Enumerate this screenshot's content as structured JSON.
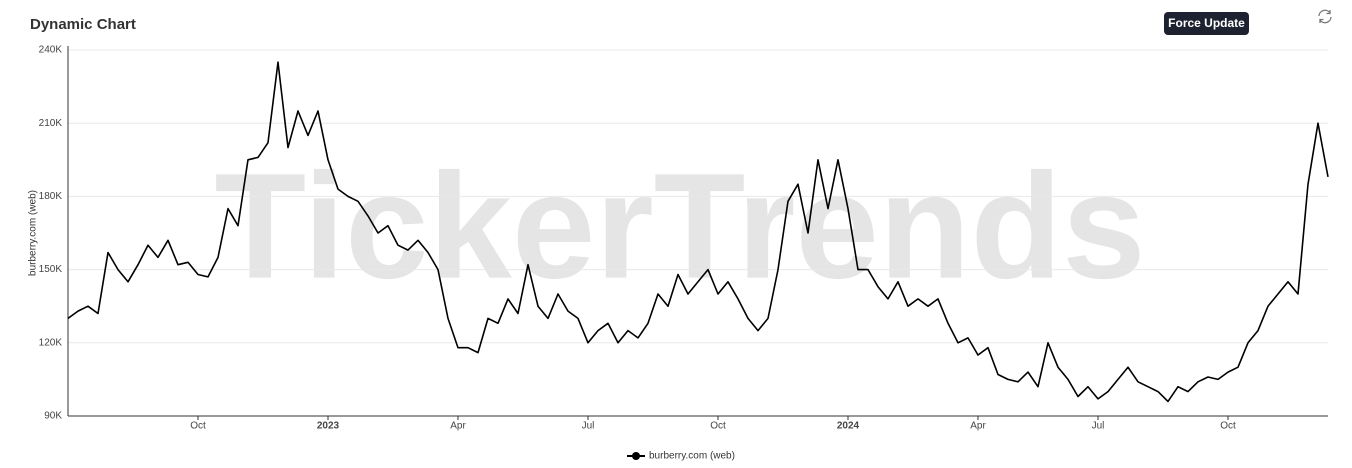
{
  "chart_data": {
    "type": "line",
    "title": "Dynamic Chart",
    "button": "Force Update",
    "watermark": "TickerTrends",
    "ylabel": "burberry.com  (web)",
    "categories": [
      null,
      null,
      null,
      null,
      null,
      null,
      null,
      null,
      null,
      null,
      null,
      null,
      null,
      "Oct",
      null,
      null,
      null,
      null,
      null,
      null,
      null,
      null,
      null,
      null,
      null,
      null,
      "2023",
      null,
      null,
      null,
      null,
      null,
      null,
      null,
      null,
      null,
      null,
      null,
      null,
      "Apr",
      null,
      null,
      null,
      null,
      null,
      null,
      null,
      null,
      null,
      null,
      null,
      null,
      "Jul",
      null,
      null,
      null,
      null,
      null,
      null,
      null,
      null,
      null,
      null,
      null,
      null,
      "Oct",
      null,
      null,
      null,
      null,
      null,
      null,
      null,
      null,
      null,
      null,
      null,
      null,
      "2024",
      null,
      null,
      null,
      null,
      null,
      null,
      null,
      null,
      null,
      null,
      null,
      null,
      "Apr",
      null,
      null,
      null,
      null,
      null,
      null,
      null,
      null,
      null,
      null,
      null,
      "Jul",
      null,
      null,
      null,
      null,
      null,
      null,
      null,
      null,
      null,
      null,
      null,
      null,
      "Oct",
      null,
      null,
      null,
      null,
      null,
      null,
      null,
      null,
      null,
      null
    ],
    "series": [
      {
        "name": "burberry.com  (web)",
        "color": "#000000",
        "values": [
          130000,
          133000,
          135000,
          132000,
          157000,
          150000,
          145000,
          152000,
          160000,
          155000,
          162000,
          152000,
          153000,
          148000,
          147000,
          155000,
          175000,
          168000,
          195000,
          196000,
          202000,
          235000,
          200000,
          215000,
          205000,
          215000,
          195000,
          183000,
          180000,
          178000,
          172000,
          165000,
          168000,
          160000,
          158000,
          162000,
          157000,
          150000,
          130000,
          118000,
          118000,
          116000,
          130000,
          128000,
          138000,
          132000,
          152000,
          135000,
          130000,
          140000,
          133000,
          130000,
          120000,
          125000,
          128000,
          120000,
          125000,
          122000,
          128000,
          140000,
          135000,
          148000,
          140000,
          145000,
          150000,
          140000,
          145000,
          138000,
          130000,
          125000,
          130000,
          150000,
          178000,
          185000,
          165000,
          195000,
          175000,
          195000,
          175000,
          150000,
          150000,
          143000,
          138000,
          145000,
          135000,
          138000,
          135000,
          138000,
          128000,
          120000,
          122000,
          115000,
          118000,
          107000,
          105000,
          104000,
          108000,
          102000,
          120000,
          110000,
          105000,
          98000,
          102000,
          97000,
          100000,
          105000,
          110000,
          104000,
          102000,
          100000,
          96000,
          102000,
          100000,
          104000,
          106000,
          105000,
          108000,
          110000,
          120000,
          125000,
          135000,
          140000,
          145000,
          140000,
          185000,
          210000,
          188000
        ]
      }
    ],
    "ylim": [
      90000,
      240000
    ],
    "yticks": [
      {
        "value": 90000,
        "label": "90K"
      },
      {
        "value": 120000,
        "label": "120K"
      },
      {
        "value": 150000,
        "label": "150K"
      },
      {
        "value": 180000,
        "label": "180K"
      },
      {
        "value": 210000,
        "label": "210K"
      },
      {
        "value": 240000,
        "label": "240K"
      }
    ],
    "grid": true
  }
}
